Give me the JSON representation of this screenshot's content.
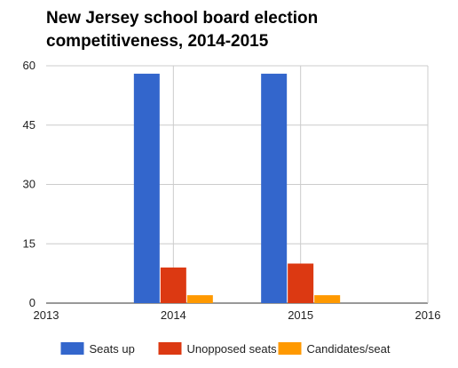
{
  "chart_data": {
    "type": "bar",
    "title": "New Jersey school board election competitiveness, 2014-2015",
    "xlabel": "",
    "ylabel": "",
    "x": [
      2014,
      2015
    ],
    "xlim": [
      2013,
      2016
    ],
    "ylim": [
      0,
      60
    ],
    "x_ticks": [
      "2013",
      "2014",
      "2015",
      "2016"
    ],
    "y_ticks": [
      "0",
      "15",
      "30",
      "45",
      "60"
    ],
    "grid": true,
    "legend_position": "bottom",
    "series": [
      {
        "name": "Seats up",
        "color": "#3366cc",
        "values": [
          58,
          58
        ]
      },
      {
        "name": "Unopposed seats",
        "color": "#dc3912",
        "values": [
          9,
          10
        ]
      },
      {
        "name": "Candidates/seat",
        "color": "#ff9900",
        "values": [
          2,
          2
        ]
      }
    ]
  }
}
